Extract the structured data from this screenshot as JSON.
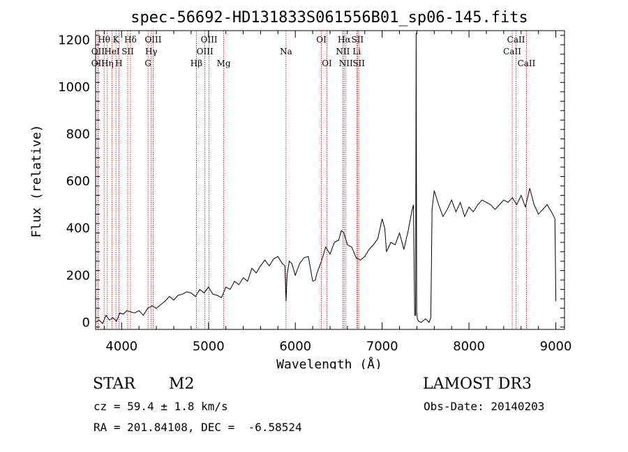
{
  "chart_data": {
    "type": "line",
    "title": "spec-56692-HD131833S061556B01_sp06-145.fits",
    "xlabel": "Wavelength (Å)",
    "ylabel": "Flux (relative)",
    "xlim": [
      3700,
      9100
    ],
    "ylim": [
      -30,
      1240
    ],
    "xticks": [
      4000,
      5000,
      6000,
      7000,
      8000,
      9000
    ],
    "yticks": [
      0,
      200,
      400,
      600,
      800,
      1000,
      1200
    ],
    "grid": false,
    "series": [
      {
        "x": [
          3700,
          3740,
          3780,
          3820,
          3860,
          3900,
          3940,
          3980,
          4020,
          4060,
          4100,
          4150,
          4200,
          4250,
          4300,
          4350,
          4400,
          4450,
          4500,
          4550,
          4600,
          4650,
          4700,
          4750,
          4800,
          4850,
          4900,
          4950,
          5000,
          5050,
          5100,
          5150,
          5200,
          5250,
          5300,
          5350,
          5400,
          5450,
          5500,
          5550,
          5600,
          5650,
          5700,
          5750,
          5800,
          5850,
          5880,
          5893,
          5905,
          5930,
          5960,
          6000,
          6050,
          6100,
          6150,
          6200,
          6230,
          6250,
          6300,
          6350,
          6400,
          6450,
          6500,
          6530,
          6560,
          6600,
          6650,
          6700,
          6750,
          6800,
          6850,
          6900,
          6950,
          7000,
          7030,
          7050,
          7100,
          7150,
          7200,
          7250,
          7300,
          7340,
          7360,
          7375,
          7385,
          7392,
          7398,
          7405,
          7420,
          7450,
          7500,
          7540,
          7560,
          7575,
          7600,
          7650,
          7700,
          7750,
          7800,
          7850,
          7900,
          7950,
          8000,
          8050,
          8100,
          8150,
          8200,
          8250,
          8300,
          8350,
          8400,
          8450,
          8500,
          8550,
          8600,
          8650,
          8700,
          8750,
          8800,
          8850,
          8900,
          8950,
          8990,
          9000
        ],
        "y": [
          0,
          10,
          -5,
          30,
          10,
          20,
          5,
          40,
          35,
          50,
          45,
          40,
          50,
          30,
          60,
          70,
          60,
          75,
          90,
          110,
          95,
          115,
          120,
          130,
          125,
          110,
          140,
          125,
          150,
          120,
          115,
          105,
          150,
          140,
          175,
          160,
          190,
          175,
          230,
          210,
          240,
          265,
          240,
          270,
          280,
          250,
          240,
          90,
          200,
          260,
          250,
          200,
          250,
          275,
          280,
          175,
          180,
          210,
          260,
          320,
          290,
          340,
          350,
          390,
          380,
          330,
          320,
          275,
          265,
          280,
          310,
          330,
          355,
          440,
          400,
          300,
          340,
          330,
          380,
          310,
          390,
          470,
          500,
          30,
          30,
          1230,
          40,
          15,
          5,
          0,
          15,
          0,
          20,
          480,
          560,
          500,
          450,
          480,
          520,
          470,
          510,
          450,
          490,
          470,
          500,
          520,
          510,
          500,
          480,
          500,
          520,
          510,
          530,
          500,
          540,
          490,
          570,
          500,
          460,
          480,
          500,
          470,
          440,
          90
        ]
      }
    ],
    "lines": [
      {
        "name": "Hθ",
        "wl": 3798,
        "row": 1
      },
      {
        "name": "OII",
        "wl": 3727,
        "row": 2
      },
      {
        "name": "OII",
        "wl": 3727,
        "row": 3
      },
      {
        "name": "K",
        "wl": 3934,
        "row": 1
      },
      {
        "name": "HeI",
        "wl": 3889,
        "row": 2
      },
      {
        "name": "Hη",
        "wl": 3835,
        "row": 3
      },
      {
        "name": "SII",
        "wl": 4070,
        "row": 2
      },
      {
        "name": "H",
        "wl": 3968,
        "row": 3
      },
      {
        "name": "Hδ",
        "wl": 4102,
        "row": 1
      },
      {
        "name": "OIII",
        "wl": 4363,
        "row": 1
      },
      {
        "name": "Hγ",
        "wl": 4341,
        "row": 2
      },
      {
        "name": "G",
        "wl": 4304,
        "row": 3
      },
      {
        "name": "OIII",
        "wl": 5007,
        "row": 1
      },
      {
        "name": "OIII",
        "wl": 4959,
        "row": 2
      },
      {
        "name": "Hβ",
        "wl": 4861,
        "row": 3
      },
      {
        "name": "Mg",
        "wl": 5175,
        "row": 3
      },
      {
        "name": "Na",
        "wl": 5893,
        "row": 2
      },
      {
        "name": "OI",
        "wl": 6300,
        "row": 1
      },
      {
        "name": "OI",
        "wl": 6364,
        "row": 3
      },
      {
        "name": "Hα",
        "wl": 6563,
        "row": 1
      },
      {
        "name": "NII",
        "wl": 6548,
        "row": 2
      },
      {
        "name": "NII",
        "wl": 6583,
        "row": 3
      },
      {
        "name": "SII",
        "wl": 6716,
        "row": 1
      },
      {
        "name": "Li",
        "wl": 6708,
        "row": 2
      },
      {
        "name": "SII",
        "wl": 6731,
        "row": 3
      },
      {
        "name": "CaII",
        "wl": 8542,
        "row": 1
      },
      {
        "name": "CaII",
        "wl": 8498,
        "row": 2
      },
      {
        "name": "CaII",
        "wl": 8662,
        "row": 3
      }
    ]
  },
  "info": {
    "class": "STAR",
    "subclass": "M2",
    "survey": "LAMOST DR3",
    "cz": "cz = 59.4 ± 1.8 km/s",
    "obs_date": "Obs-Date: 20140203",
    "radec": "RA = 201.84108, DEC =  -6.58524"
  },
  "colors": {
    "line_marker": "#cc0000",
    "spectrum": "#000000"
  }
}
